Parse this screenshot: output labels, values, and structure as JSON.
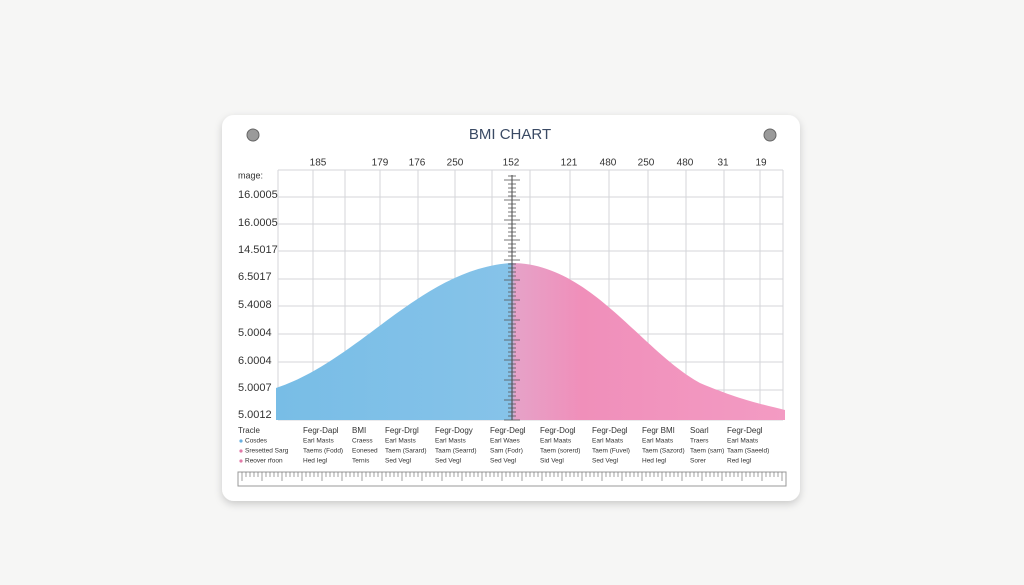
{
  "title": "BMI CHART",
  "top_labels": [
    "185",
    "179",
    "176",
    "250",
    "152",
    "121",
    "480",
    "250",
    "480",
    "31",
    "19"
  ],
  "y_labels": [
    "mage:",
    "16.0005",
    "16.0005",
    "14.5017",
    "6.5017",
    "5.4008",
    "5.0004",
    "6.0004",
    "5.0007",
    "5.0012"
  ],
  "legend": [
    "Tracle",
    "Cosdes",
    "Sresetted Sarg",
    "Reover rfoon"
  ],
  "columns": [
    [
      "Fegr-Dapl",
      "Earl Masts",
      "Taems (Fodd)",
      "Hed Iegl"
    ],
    [
      "BMI",
      "Craess",
      "Eonesed",
      "Ternis"
    ],
    [
      "Fegr-Drgl",
      "Earl Masts",
      "Taem (Sarard)",
      "Sed Vegl"
    ],
    [
      "Fegr-Dogy",
      "Earl Masts",
      "Taam (Searrd)",
      "Sed Vegl"
    ],
    [
      "Fegr-Degl",
      "Earl Waes",
      "Sam (Fodr)",
      "Sed Vegl"
    ],
    [
      "Fegr-Dogl",
      "Earl Maats",
      "Taem (sorerd)",
      "Sid Vegl"
    ],
    [
      "Fegr-Degl",
      "Earl Maats",
      "Taem (Fuvel)",
      "Sed Vegl"
    ],
    [
      "Fegr BMI",
      "Earl Maats",
      "Taem (Sazord)",
      "Hed Iegl"
    ],
    [
      "Soarl",
      "Traers",
      "Taem (sam)",
      "Sorer"
    ],
    [
      "Fegr-Degl",
      "Earl Maats",
      "Taam (Saeeld)",
      "Red Iegl"
    ]
  ]
}
